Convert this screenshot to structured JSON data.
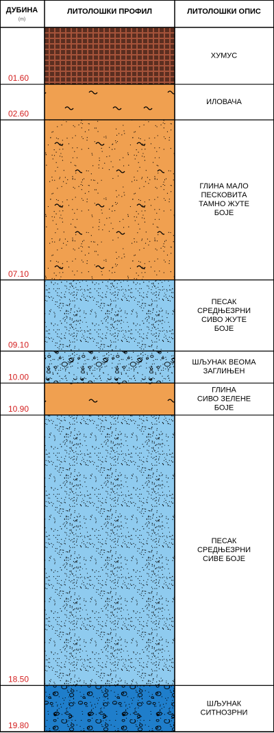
{
  "header": {
    "depth_title": "ДУБИНА",
    "depth_unit": "(m)",
    "profile_title": "ЛИТОЛОШКИ ПРОФИЛ",
    "description_title": "ЛИТОЛОШКИ ОПИС"
  },
  "layers": [
    {
      "depth": "01.60",
      "description": [
        "ХУМУС"
      ]
    },
    {
      "depth": "02.60",
      "description": [
        "ИЛОВАЧА"
      ]
    },
    {
      "depth": "07.10",
      "description": [
        "ГЛИНА МАЛО",
        "ПЕСКОВИТА",
        "ТАМНО ЖУТЕ",
        "БОЈЕ"
      ]
    },
    {
      "depth": "09.10",
      "description": [
        "ПЕСАК",
        "СРЕДЊЕЗРНИ",
        "СИВО ЖУТЕ",
        "БОЈЕ"
      ]
    },
    {
      "depth": "10.00",
      "description": [
        "ШЉУНАК ВЕОМА",
        "ЗАГЛИЊЕН"
      ]
    },
    {
      "depth": "10.90",
      "description": [
        "ГЛИНА",
        "СИВО ЗЕЛЕНЕ",
        "БОЈЕ"
      ]
    },
    {
      "depth": "18.50",
      "description": [
        "ПЕСАК",
        "СРЕДЊЕЗРНИ",
        "СИВЕ БОЈЕ"
      ]
    },
    {
      "depth": "19.80",
      "description": [
        "ШЉУНАК",
        "СИТНОЗРНИ"
      ]
    }
  ]
}
